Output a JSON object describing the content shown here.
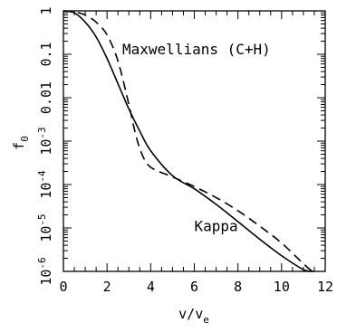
{
  "chart_data": {
    "type": "line",
    "xlabel": "v/v",
    "xlabel_sub": "e",
    "ylabel": "f",
    "ylabel_sub": "0",
    "xlim": [
      0,
      12
    ],
    "ylim": [
      1e-06,
      1
    ],
    "yscale": "log",
    "grid": false,
    "x_ticks": [
      {
        "value": 0,
        "label": "0"
      },
      {
        "value": 2,
        "label": "2"
      },
      {
        "value": 4,
        "label": "4"
      },
      {
        "value": 6,
        "label": "6"
      },
      {
        "value": 8,
        "label": "8"
      },
      {
        "value": 10,
        "label": "10"
      },
      {
        "value": 12,
        "label": "12"
      }
    ],
    "y_ticks": [
      {
        "exp": 0,
        "label": "1"
      },
      {
        "exp": -1,
        "label": "0.1"
      },
      {
        "exp": -2,
        "label": "0.01"
      },
      {
        "exp": -3,
        "label": "10",
        "sup": "-3"
      },
      {
        "exp": -4,
        "label": "10",
        "sup": "-4"
      },
      {
        "exp": -5,
        "label": "10",
        "sup": "-5"
      },
      {
        "exp": -6,
        "label": "10",
        "sup": "-6"
      }
    ],
    "series": [
      {
        "name": "Kappa",
        "style": "solid",
        "color": "#000000",
        "points": [
          [
            0,
            1.0
          ],
          [
            0.5,
            0.9
          ],
          [
            1.0,
            0.55
          ],
          [
            1.5,
            0.25
          ],
          [
            2.0,
            0.08
          ],
          [
            2.5,
            0.021
          ],
          [
            3.0,
            0.0055
          ],
          [
            3.5,
            0.0017
          ],
          [
            4.0,
            0.0006
          ],
          [
            5.0,
            0.00016
          ],
          [
            6.0,
            8e-05
          ],
          [
            7.0,
            3.5e-05
          ],
          [
            8.0,
            1.4e-05
          ],
          [
            9.0,
            5.5e-06
          ],
          [
            10.0,
            2.3e-06
          ],
          [
            11.0,
            1.1e-06
          ],
          [
            11.5,
            1e-06
          ]
        ]
      },
      {
        "name": "Maxwellians (C+H)",
        "style": "dashed",
        "color": "#000000",
        "points": [
          [
            0,
            1.0
          ],
          [
            0.5,
            0.95
          ],
          [
            1.0,
            0.8
          ],
          [
            1.5,
            0.55
          ],
          [
            2.0,
            0.28
          ],
          [
            2.5,
            0.07
          ],
          [
            3.0,
            0.007
          ],
          [
            3.3,
            0.0015
          ],
          [
            3.6,
            0.0005
          ],
          [
            4.0,
            0.00025
          ],
          [
            5.0,
            0.00015
          ],
          [
            6.0,
            9e-05
          ],
          [
            7.0,
            5e-05
          ],
          [
            8.0,
            2.5e-05
          ],
          [
            9.0,
            1.1e-05
          ],
          [
            10.0,
            4.5e-06
          ],
          [
            11.0,
            1.5e-06
          ],
          [
            11.4,
            1e-06
          ]
        ]
      }
    ],
    "annotations": [
      {
        "text": "Maxwellians (C+H)",
        "x": 6.1,
        "y": 0.1
      },
      {
        "text": "Kappa",
        "x": 7.0,
        "y": 8.5e-06
      }
    ]
  }
}
